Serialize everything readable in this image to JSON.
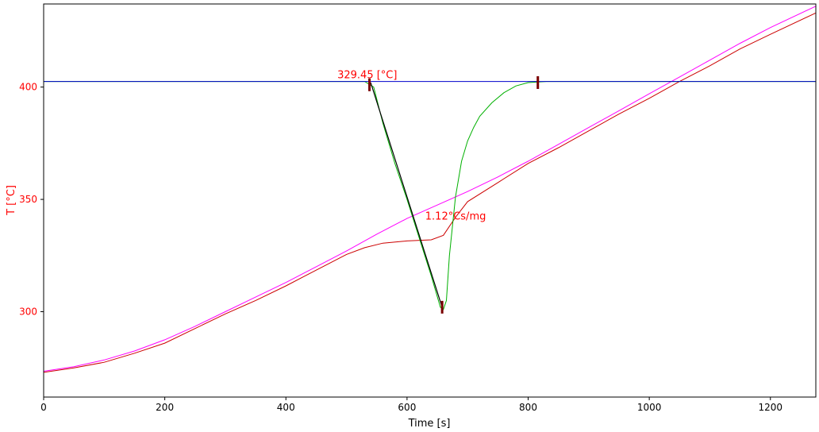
{
  "chart_data": {
    "type": "line",
    "xlabel": "Time [s]",
    "ylabel": "T  [°C]",
    "xlim": [
      0,
      1275
    ],
    "ylim": [
      262,
      437
    ],
    "xticks": [
      0,
      200,
      400,
      600,
      800,
      1000,
      1200
    ],
    "yticks": [
      300,
      350,
      400
    ],
    "grid": false,
    "annotations": [
      {
        "text": "329.45 [°C]",
        "x": 485,
        "y": 404
      },
      {
        "text": "1.12°Cs/mg",
        "x": 630,
        "y": 341
      }
    ],
    "markers": [
      {
        "x": 538,
        "y": 401
      },
      {
        "x": 658,
        "y": 302
      },
      {
        "x": 816,
        "y": 402
      }
    ],
    "series": [
      {
        "color": "#ff00ff",
        "x": [
          0,
          50,
          100,
          150,
          200,
          250,
          300,
          350,
          400,
          450,
          500,
          550,
          600,
          650,
          700,
          750,
          800,
          850,
          900,
          950,
          1000,
          1050,
          1100,
          1150,
          1200,
          1275
        ],
        "y": [
          273.5,
          275.5,
          278.5,
          282.5,
          287.5,
          293.5,
          300,
          306.5,
          313,
          320,
          327,
          334.5,
          341.5,
          347.5,
          353.5,
          360,
          367,
          374.5,
          382,
          389.5,
          397,
          404.5,
          412,
          419.5,
          426.5,
          436
        ]
      },
      {
        "color": "#cc0000",
        "x": [
          0,
          50,
          100,
          150,
          200,
          250,
          300,
          350,
          400,
          450,
          500,
          530,
          560,
          600,
          640,
          660,
          680,
          700,
          750,
          800,
          850,
          900,
          950,
          1000,
          1050,
          1100,
          1150,
          1200,
          1275
        ],
        "y": [
          273,
          275,
          277.5,
          281.5,
          286,
          292.5,
          299,
          305,
          311.5,
          318.5,
          325.5,
          328.5,
          330.5,
          331.5,
          332,
          334,
          342,
          349,
          357.5,
          366,
          373,
          380.5,
          388,
          395,
          402.5,
          409.5,
          417,
          423.5,
          433
        ]
      },
      {
        "color": "#00b000",
        "x": [
          0,
          530,
          545,
          560,
          580,
          600,
          620,
          640,
          655,
          660,
          665,
          670,
          680,
          690,
          700,
          710,
          720,
          740,
          760,
          780,
          800,
          830,
          1275
        ],
        "y": [
          402.5,
          402.5,
          400,
          384,
          366,
          350,
          333,
          316,
          302,
          301,
          305,
          325,
          351,
          367,
          376,
          382,
          387,
          393,
          397.5,
          400.5,
          402,
          402.5,
          402.5
        ]
      },
      {
        "color": "#0000cc",
        "x": [
          0,
          1275
        ],
        "y": [
          402.5,
          402.5
        ]
      },
      {
        "color": "#000000",
        "x": [
          540,
          658
        ],
        "y": [
          402,
          302
        ]
      }
    ]
  }
}
